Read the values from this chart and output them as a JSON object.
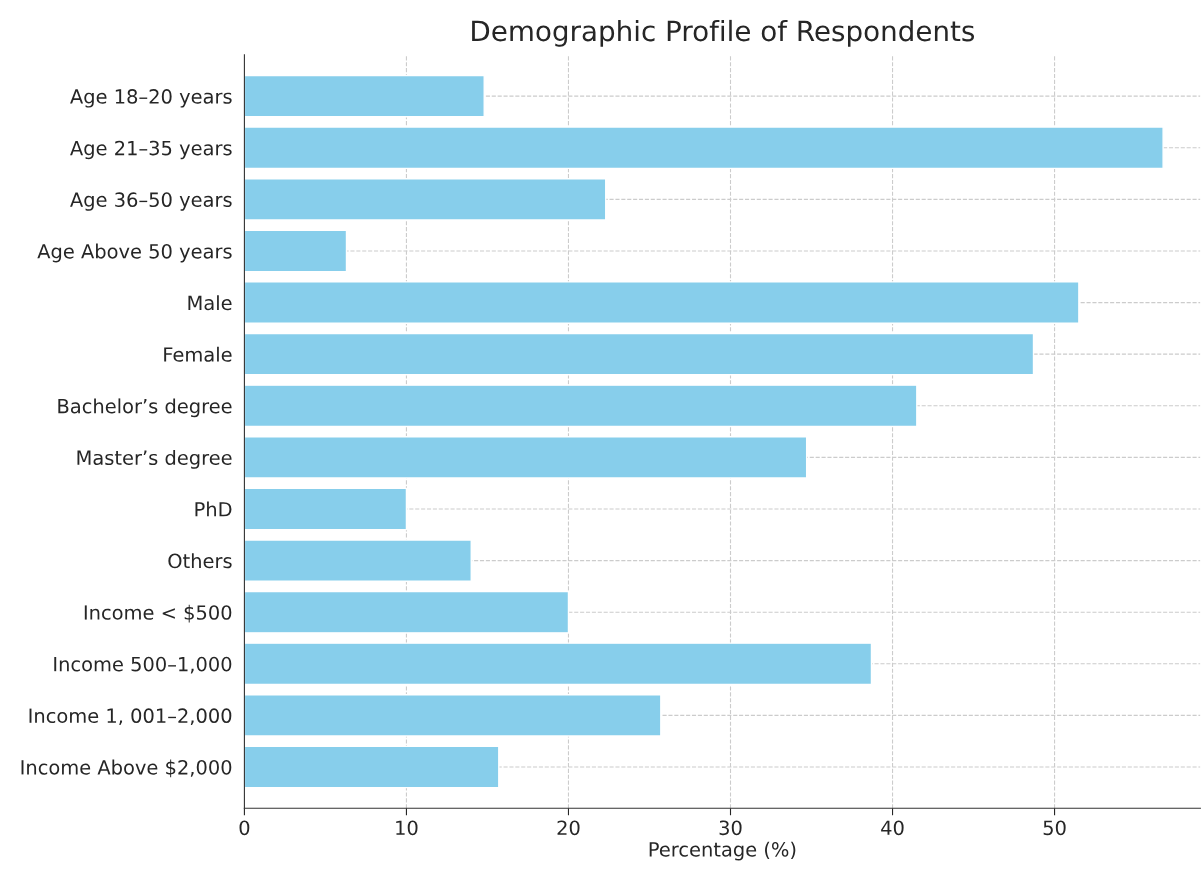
{
  "chart_data": {
    "type": "bar",
    "orientation": "horizontal",
    "title": "Demographic Profile of Respondents",
    "xlabel": "Percentage (%)",
    "categories": [
      "Age 18–20 years",
      "Age 21–35 years",
      "Age 36–50 years",
      "Age Above 50 years",
      "Male",
      "Female",
      "Bachelor’s degree",
      "Master’s degree",
      "PhD",
      "Others",
      "Income < $500",
      "Income 500–1,000",
      "Income 1, 001–2,000",
      "Income Above $2,000"
    ],
    "values": [
      14.8,
      56.7,
      22.3,
      6.3,
      51.5,
      48.7,
      41.5,
      34.7,
      10.0,
      14.0,
      20.0,
      38.7,
      25.7,
      15.7
    ],
    "color": "#87ceeb",
    "xlim": [
      0,
      59
    ],
    "xticks": [
      0,
      10,
      20,
      30,
      40,
      50
    ],
    "grid": true
  }
}
